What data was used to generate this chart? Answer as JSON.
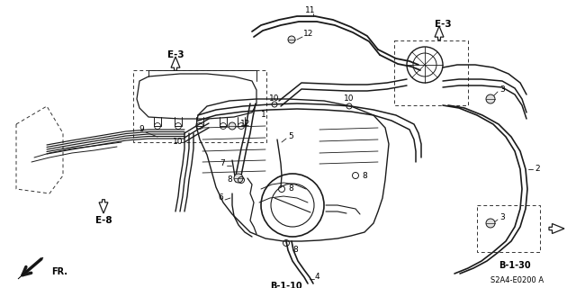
{
  "bg_color": "#ffffff",
  "line_color": "#1a1a1a",
  "text_color": "#000000",
  "dash_color": "#333333",
  "fig_width": 6.4,
  "fig_height": 3.2,
  "dpi": 100,
  "labels": {
    "E3_left": "E-3",
    "E3_right": "E-3",
    "E8": "E-8",
    "B110": "B-1-10",
    "B130": "B-1-30",
    "FR": "FR.",
    "part_code": "S2A4-E0200 A"
  }
}
